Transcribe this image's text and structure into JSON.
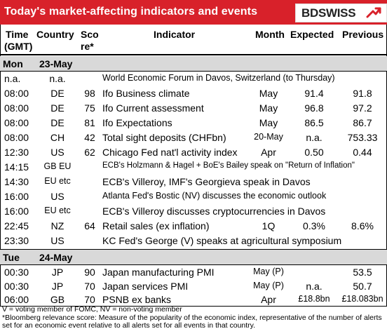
{
  "header": {
    "title": "Today's market-affecting indicators and events",
    "logo_text": "BDSWISS",
    "brand_color": "#d8212a"
  },
  "columns": {
    "time": [
      "Time",
      "(GMT)"
    ],
    "country": "Country",
    "score": [
      "Sco",
      "re*"
    ],
    "indicator": "Indicator",
    "month": "Month",
    "expected": "Expected",
    "previous": "Previous"
  },
  "sections": [
    {
      "day": "Mon",
      "date": "23-May",
      "rows": [
        {
          "time": "n.a.",
          "country": "n.a.",
          "score": "",
          "indicator": "World Economic Forum in Davos, Switzerland (to Thursday)",
          "month": "",
          "expected": "",
          "previous": ""
        },
        {
          "time": "08:00",
          "country": "DE",
          "score": "98",
          "indicator": "Ifo Business climate",
          "month": "May",
          "expected": "91.4",
          "previous": "91.8"
        },
        {
          "time": "08:00",
          "country": "DE",
          "score": "75",
          "indicator": "Ifo Current assessment",
          "month": "May",
          "expected": "96.8",
          "previous": "97.2"
        },
        {
          "time": "08:00",
          "country": "DE",
          "score": "81",
          "indicator": "Ifo Expectations",
          "month": "May",
          "expected": "86.5",
          "previous": "86.7"
        },
        {
          "time": "08:00",
          "country": "CH",
          "score": "42",
          "indicator": "Total sight deposits (CHFbn)",
          "month": "20-May",
          "expected": "n.a.",
          "previous": "753.33"
        },
        {
          "time": "12:30",
          "country": "US",
          "score": "62",
          "indicator": "Chicago Fed nat'l activity index",
          "month": "Apr",
          "expected": "0.50",
          "previous": "0.44"
        },
        {
          "time": "14:15",
          "country": "GB EU",
          "score": "",
          "indicator": "ECB's Holzmann & Hagel + BoE's Bailey speak on \"Return of Inflation\"",
          "month": "",
          "expected": "",
          "previous": ""
        },
        {
          "time": "14:30",
          "country": "EU etc",
          "score": "",
          "indicator": "ECB's Villeroy, IMF's Georgieva speak in Davos",
          "month": "",
          "expected": "",
          "previous": ""
        },
        {
          "time": "16:00",
          "country": "US",
          "score": "",
          "indicator": "Atlanta Fed's Bostic (NV) discusses the economic outlook",
          "month": "",
          "expected": "",
          "previous": ""
        },
        {
          "time": "16:00",
          "country": "EU etc",
          "score": "",
          "indicator": "ECB's Villeroy discusses cryptocurrencies in Davos",
          "month": "",
          "expected": "",
          "previous": ""
        },
        {
          "time": "22:45",
          "country": "NZ",
          "score": "64",
          "indicator": "Retail sales (ex inflation)",
          "month": "1Q",
          "expected": "0.3%",
          "previous": "8.6%"
        },
        {
          "time": "23:30",
          "country": "US",
          "score": "",
          "indicator": "KC Fed's George (V) speaks at agricultural symposium",
          "month": "",
          "expected": "",
          "previous": ""
        }
      ]
    },
    {
      "day": "Tue",
      "date": "24-May",
      "rows": [
        {
          "time": "00:30",
          "country": "JP",
          "score": "90",
          "indicator": "Japan manufacturing PMI",
          "month": "May (P)",
          "expected": "",
          "previous": "53.5"
        },
        {
          "time": "00:30",
          "country": "JP",
          "score": "70",
          "indicator": "Japan services PMI",
          "month": "May (P)",
          "expected": "n.a.",
          "previous": "50.7"
        },
        {
          "time": "06:00",
          "country": "GB",
          "score": "70",
          "indicator": "PSNB ex banks",
          "month": "Apr",
          "expected": "£18.8bn",
          "previous": "£18.083bn"
        }
      ]
    }
  ],
  "notes": [
    "V = voting member of FOMC, NV = non-voting member",
    "*Bloomberg relevance score:  Measure of the popularity of the economic index, representative of the number of alerts set for an economic event relative to all alerts set for all events in that country."
  ]
}
